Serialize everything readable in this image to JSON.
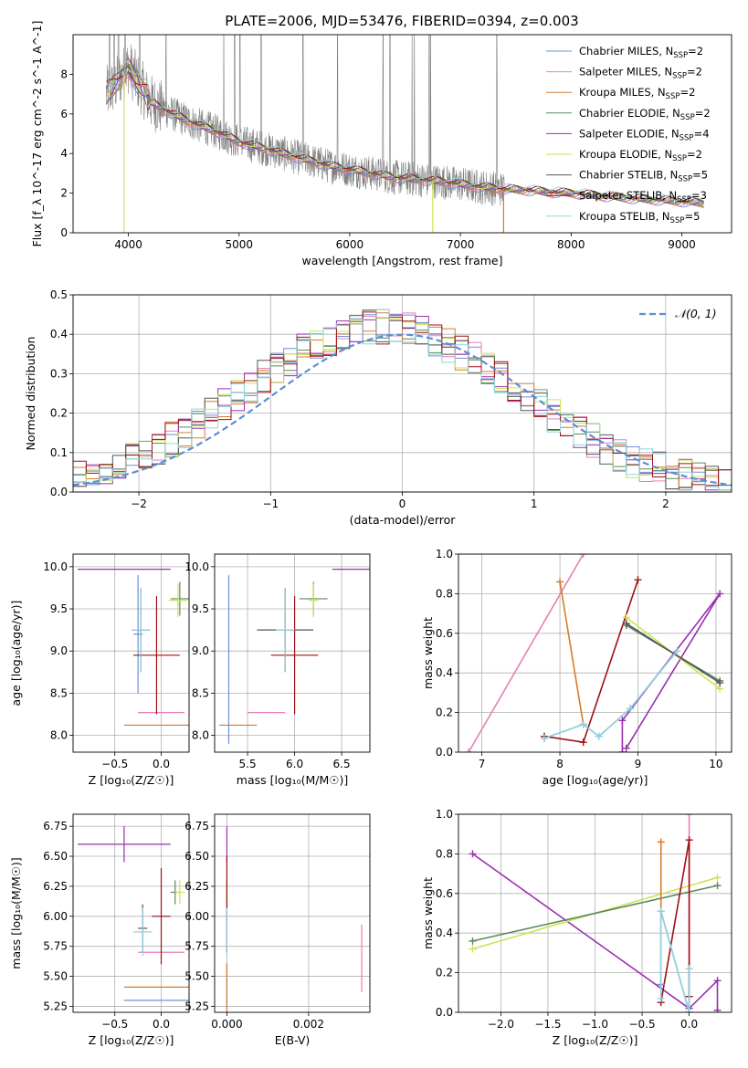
{
  "page": {
    "title": "PLATE=2006, MJD=53476, FIBERID=0394, z=0.003"
  },
  "colors": {
    "Chabrier MILES": "#6f8fd6",
    "Salpeter MILES": "#e77fb5",
    "Kroupa MILES": "#d87a2a",
    "Chabrier ELODIE": "#5b8a5f",
    "Salpeter ELODIE": "#9a2fb0",
    "Kroupa ELODIE": "#c8e651",
    "Chabrier STELIB": "#555555",
    "Salpeter STELIB": "#a01010",
    "Kroupa STELIB": "#8fd3e0",
    "data": "#7f7f7f",
    "gauss": "#5b8ed6"
  },
  "chart_data": [
    {
      "id": "spectrum",
      "type": "line",
      "xlabel": "wavelength [Angstrom, rest frame]",
      "ylabel": "Flux [f_λ 10^-17 erg cm^-2 s^-1 A^-1]",
      "xlim": [
        3500,
        9450
      ],
      "ylim": [
        0,
        10
      ],
      "xticks": [
        "4000",
        "5000",
        "6000",
        "7000",
        "8000",
        "9000"
      ],
      "yticks": [
        "0",
        "2",
        "4",
        "6",
        "8"
      ],
      "legend_position": "upper right",
      "legend": [
        {
          "label": "Chabrier MILES, N",
          "sub": "SSP",
          "suffix": "=2",
          "key": "Chabrier MILES"
        },
        {
          "label": "Salpeter MILES, N",
          "sub": "SSP",
          "suffix": "=2",
          "key": "Salpeter MILES"
        },
        {
          "label": "Kroupa MILES, N",
          "sub": "SSP",
          "suffix": "=2",
          "key": "Kroupa MILES"
        },
        {
          "label": "Chabrier ELODIE, N",
          "sub": "SSP",
          "suffix": "=2",
          "key": "Chabrier ELODIE"
        },
        {
          "label": "Salpeter ELODIE, N",
          "sub": "SSP",
          "suffix": "=4",
          "key": "Salpeter ELODIE"
        },
        {
          "label": "Kroupa ELODIE, N",
          "sub": "SSP",
          "suffix": "=2",
          "key": "Kroupa ELODIE"
        },
        {
          "label": "Chabrier STELIB, N",
          "sub": "SSP",
          "suffix": "=5",
          "key": "Chabrier STELIB"
        },
        {
          "label": "Salpeter STELIB, N",
          "sub": "SSP",
          "suffix": "=3",
          "key": "Salpeter STELIB"
        },
        {
          "label": "Kroupa STELIB, N",
          "sub": "SSP",
          "suffix": "=5",
          "key": "Kroupa STELIB"
        }
      ],
      "continuum": {
        "x": [
          3800,
          3900,
          4000,
          4100,
          4200,
          4400,
          4600,
          4800,
          5000,
          5200,
          5400,
          5600,
          5800,
          6000,
          6200,
          6400,
          6600,
          6800,
          7000,
          7200,
          7400,
          7600,
          7800,
          8000,
          8200,
          8400,
          8600,
          8800,
          9000,
          9200
        ],
        "y": [
          7.0,
          7.6,
          8.4,
          7.5,
          6.6,
          6.0,
          5.5,
          5.1,
          4.6,
          4.3,
          4.0,
          3.7,
          3.4,
          3.2,
          3.0,
          2.8,
          2.7,
          2.6,
          2.45,
          2.3,
          2.2,
          2.15,
          2.05,
          2.0,
          1.9,
          1.8,
          1.72,
          1.65,
          1.58,
          1.5
        ]
      },
      "emission_lines": [
        3830,
        3870,
        3910,
        3970,
        4102,
        4340,
        4862,
        4959,
        5007,
        5200,
        5577,
        5890,
        6300,
        6363,
        6563,
        6584,
        6717,
        6731,
        7330
      ],
      "dropouts": [
        {
          "x": 3960,
          "key": "Kroupa ELODIE"
        },
        {
          "x": 6750,
          "key": "Kroupa ELODIE"
        },
        {
          "x": 7390,
          "key": "Kroupa MILES"
        }
      ]
    },
    {
      "id": "residuals",
      "type": "histogram",
      "xlabel": "(data-model)/error",
      "ylabel": "Normed distribution",
      "xlim": [
        -2.5,
        2.5
      ],
      "ylim": [
        0,
        0.5
      ],
      "xticks": [
        "−2",
        "−1",
        "0",
        "1",
        "2"
      ],
      "yticks": [
        "0.0",
        "0.1",
        "0.2",
        "0.3",
        "0.4",
        "0.5"
      ],
      "legend": {
        "label": "𝒩(0, 1)"
      },
      "bin_width": 0.1
    },
    {
      "id": "age_vs_Z",
      "type": "errorbar",
      "xlabel": "Z [log₁₀(Z/Z☉)]",
      "ylabel": "age  [log₁₀(age/yr)]",
      "xlim": [
        -0.95,
        0.3
      ],
      "ylim": [
        7.8,
        10.15
      ],
      "xticks": [
        "−0.5",
        "0.0"
      ],
      "yticks": [
        "8.0",
        "8.5",
        "9.0",
        "9.5",
        "10.0"
      ],
      "points": [
        {
          "key": "Chabrier MILES",
          "x": -0.25,
          "y": 9.2,
          "xerr": 0.05,
          "yerr": 0.7
        },
        {
          "key": "Salpeter MILES",
          "x": 0.0,
          "y": 8.27,
          "xerr": 0.25,
          "yerr": 0.0
        },
        {
          "key": "Kroupa MILES",
          "x": -0.05,
          "y": 8.12,
          "xerr": 0.35,
          "yerr": 0.0
        },
        {
          "key": "Chabrier ELODIE",
          "x": 0.2,
          "y": 9.62,
          "xerr": 0.1,
          "yerr": 0.2
        },
        {
          "key": "Salpeter ELODIE",
          "x": -0.4,
          "y": 9.97,
          "xerr": 0.5,
          "yerr": 0.0
        },
        {
          "key": "Kroupa ELODIE",
          "x": 0.18,
          "y": 9.6,
          "xerr": 0.1,
          "yerr": 0.2
        },
        {
          "key": "Chabrier STELIB",
          "x": -0.22,
          "y": 9.25,
          "xerr": 0.1,
          "yerr": 0.5
        },
        {
          "key": "Salpeter STELIB",
          "x": -0.05,
          "y": 8.95,
          "xerr": 0.25,
          "yerr": 0.7
        },
        {
          "key": "Kroupa STELIB",
          "x": -0.22,
          "y": 9.25,
          "xerr": 0.1,
          "yerr": 0.5
        }
      ]
    },
    {
      "id": "age_vs_mass",
      "type": "errorbar",
      "xlabel": "mass [log₁₀(M/M☉)]",
      "ylabel": "",
      "xlim": [
        5.15,
        6.8
      ],
      "ylim": [
        7.8,
        10.15
      ],
      "xticks": [
        "5.5",
        "6.0",
        "6.5"
      ],
      "yticks": [
        "8.0",
        "8.5",
        "9.0",
        "9.5",
        "10.0"
      ],
      "points": [
        {
          "key": "Chabrier MILES",
          "x": 5.3,
          "y": 8.9,
          "xerr": 0.0,
          "yerr": 1.0
        },
        {
          "key": "Salpeter MILES",
          "x": 5.7,
          "y": 8.27,
          "xerr": 0.2,
          "yerr": 0.0
        },
        {
          "key": "Kroupa MILES",
          "x": 5.4,
          "y": 8.12,
          "xerr": 0.2,
          "yerr": 0.0
        },
        {
          "key": "Chabrier ELODIE",
          "x": 6.2,
          "y": 9.62,
          "xerr": 0.15,
          "yerr": 0.2
        },
        {
          "key": "Salpeter ELODIE",
          "x": 6.6,
          "y": 9.97,
          "xerr": 0.2,
          "yerr": 0.0
        },
        {
          "key": "Kroupa ELODIE",
          "x": 6.2,
          "y": 9.6,
          "xerr": 0.05,
          "yerr": 0.2
        },
        {
          "key": "Chabrier STELIB",
          "x": 5.9,
          "y": 9.25,
          "xerr": 0.3,
          "yerr": 0.5
        },
        {
          "key": "Salpeter STELIB",
          "x": 6.0,
          "y": 8.95,
          "xerr": 0.25,
          "yerr": 0.7
        },
        {
          "key": "Kroupa STELIB",
          "x": 5.9,
          "y": 9.25,
          "xerr": 0.1,
          "yerr": 0.5
        }
      ]
    },
    {
      "id": "weight_vs_age",
      "type": "line",
      "xlabel": "age  [log₁₀(age/yr)]",
      "ylabel": "mass weight",
      "xlim": [
        6.7,
        10.2
      ],
      "ylim": [
        0,
        1
      ],
      "xticks": [
        "7",
        "8",
        "9",
        "10"
      ],
      "yticks": [
        "0.0",
        "0.2",
        "0.4",
        "0.6",
        "0.8",
        "1.0"
      ],
      "series": [
        {
          "key": "Salpeter MILES",
          "x": [
            6.83,
            8.3
          ],
          "y": [
            0.0,
            1.0
          ]
        },
        {
          "key": "Kroupa MILES",
          "x": [
            8.0,
            8.3
          ],
          "y": [
            0.86,
            0.14
          ]
        },
        {
          "key": "Chabrier MILES",
          "x": [
            7.8,
            8.3,
            8.5,
            8.9,
            9.5
          ],
          "y": [
            0.07,
            0.14,
            0.08,
            0.22,
            0.51
          ]
        },
        {
          "key": "Salpeter STELIB",
          "x": [
            7.8,
            8.3,
            9.0
          ],
          "y": [
            0.08,
            0.05,
            0.87
          ]
        },
        {
          "key": "Salpeter ELODIE",
          "x": [
            8.8,
            8.8,
            10.05,
            8.85
          ],
          "y": [
            0.0,
            0.16,
            0.8,
            0.02
          ]
        },
        {
          "key": "Kroupa ELODIE",
          "x": [
            8.85,
            10.05
          ],
          "y": [
            0.68,
            0.32
          ]
        },
        {
          "key": "Chabrier ELODIE",
          "x": [
            8.85,
            10.05
          ],
          "y": [
            0.64,
            0.36
          ]
        },
        {
          "key": "Chabrier STELIB",
          "x": [
            8.85,
            10.05
          ],
          "y": [
            0.65,
            0.35
          ]
        },
        {
          "key": "Kroupa STELIB",
          "x": [
            7.8,
            8.3,
            8.5,
            8.9,
            9.5
          ],
          "y": [
            0.07,
            0.14,
            0.08,
            0.22,
            0.51
          ]
        }
      ]
    },
    {
      "id": "mass_vs_Z",
      "type": "errorbar",
      "xlabel": "Z [log₁₀(Z/Z☉)]",
      "ylabel": "mass [log₁₀(M/M☉)]",
      "xlim": [
        -0.95,
        0.3
      ],
      "ylim": [
        5.2,
        6.85
      ],
      "xticks": [
        "−0.5",
        "0.0"
      ],
      "yticks": [
        "5.25",
        "5.50",
        "5.75",
        "6.00",
        "6.25",
        "6.50",
        "6.75"
      ],
      "points": [
        {
          "key": "Chabrier MILES",
          "x": -0.05,
          "y": 5.3,
          "xerr": 0.35,
          "yerr": 0.0
        },
        {
          "key": "Salpeter MILES",
          "x": 0.0,
          "y": 5.7,
          "xerr": 0.25,
          "yerr": 0.0
        },
        {
          "key": "Kroupa MILES",
          "x": -0.05,
          "y": 5.41,
          "xerr": 0.35,
          "yerr": 0.0
        },
        {
          "key": "Chabrier ELODIE",
          "x": 0.15,
          "y": 6.2,
          "xerr": 0.05,
          "yerr": 0.1
        },
        {
          "key": "Salpeter ELODIE",
          "x": -0.4,
          "y": 6.6,
          "xerr": 0.5,
          "yerr": 0.15
        },
        {
          "key": "Kroupa ELODIE",
          "x": 0.2,
          "y": 6.2,
          "xerr": 0.05,
          "yerr": 0.1
        },
        {
          "key": "Chabrier STELIB",
          "x": -0.2,
          "y": 5.9,
          "xerr": 0.05,
          "yerr": 0.2
        },
        {
          "key": "Salpeter STELIB",
          "x": 0.0,
          "y": 6.0,
          "xerr": 0.1,
          "yerr": 0.4
        },
        {
          "key": "Kroupa STELIB",
          "x": -0.2,
          "y": 5.87,
          "xerr": 0.1,
          "yerr": 0.2
        }
      ]
    },
    {
      "id": "mass_vs_ebv",
      "type": "errorbar",
      "xlabel": "E(B-V)",
      "ylabel": "",
      "xlim": [
        -0.0003,
        0.0035
      ],
      "ylim": [
        5.2,
        6.85
      ],
      "xticks": [
        "0.000",
        "0.002"
      ],
      "yticks": [
        "5.25",
        "5.50",
        "5.75",
        "6.00",
        "6.25",
        "6.50",
        "6.75"
      ],
      "points": [
        {
          "key": "Chabrier MILES",
          "x": 0.0,
          "y": 5.3,
          "xerr": 0,
          "yerr": 0.3
        },
        {
          "key": "Salpeter MILES",
          "x": 0.0033,
          "y": 5.65,
          "xerr": 0,
          "yerr": 0.28
        },
        {
          "key": "Kroupa MILES",
          "x": 0.0,
          "y": 5.41,
          "xerr": 0,
          "yerr": 0.2
        },
        {
          "key": "Chabrier ELODIE",
          "x": 0.0,
          "y": 6.2,
          "xerr": 0,
          "yerr": 0.1
        },
        {
          "key": "Salpeter ELODIE",
          "x": 0.0,
          "y": 6.6,
          "xerr": 0,
          "yerr": 0.15
        },
        {
          "key": "Kroupa ELODIE",
          "x": 0.0,
          "y": 6.2,
          "xerr": 0,
          "yerr": 0.1
        },
        {
          "key": "Chabrier STELIB",
          "x": 0.0,
          "y": 5.9,
          "xerr": 0,
          "yerr": 0.2
        },
        {
          "key": "Salpeter STELIB",
          "x": 0.0,
          "y": 6.1,
          "xerr": 0,
          "yerr": 0.4
        },
        {
          "key": "Kroupa STELIB",
          "x": 0.0,
          "y": 5.87,
          "xerr": 0,
          "yerr": 0.2
        }
      ]
    },
    {
      "id": "weight_vs_Z",
      "type": "line",
      "xlabel": "Z [log₁₀(Z/Z☉)]",
      "ylabel": "mass weight",
      "xlim": [
        -2.45,
        0.45
      ],
      "ylim": [
        0,
        1
      ],
      "xticks": [
        "−2.0",
        "−1.5",
        "−1.0",
        "−0.5",
        "0.0"
      ],
      "yticks": [
        "0.0",
        "0.2",
        "0.4",
        "0.6",
        "0.8",
        "1.0"
      ],
      "series": [
        {
          "key": "Salpeter ELODIE",
          "x": [
            -2.3,
            0.0,
            0.3,
            0.3
          ],
          "y": [
            0.8,
            0.02,
            0.16,
            0.01
          ]
        },
        {
          "key": "Kroupa ELODIE",
          "x": [
            -2.3,
            0.3
          ],
          "y": [
            0.32,
            0.68
          ]
        },
        {
          "key": "Chabrier ELODIE",
          "x": [
            -2.3,
            0.3
          ],
          "y": [
            0.36,
            0.64
          ]
        },
        {
          "key": "Kroupa MILES",
          "x": [
            -0.3,
            -0.3
          ],
          "y": [
            0.14,
            0.86
          ]
        },
        {
          "key": "Salpeter MILES",
          "x": [
            0.0,
            0.0
          ],
          "y": [
            0.0,
            1.0
          ]
        },
        {
          "key": "Salpeter STELIB",
          "x": [
            -0.3,
            0.0,
            0.0
          ],
          "y": [
            0.05,
            0.87,
            0.08
          ]
        },
        {
          "key": "Chabrier MILES",
          "x": [
            -0.3,
            -0.3,
            0.0,
            0.0
          ],
          "y": [
            0.14,
            0.51,
            0.0,
            0.22
          ]
        },
        {
          "key": "Kroupa STELIB",
          "x": [
            -0.3,
            -0.3,
            0.0,
            0.0
          ],
          "y": [
            0.07,
            0.51,
            0.0,
            0.22
          ]
        }
      ]
    }
  ]
}
